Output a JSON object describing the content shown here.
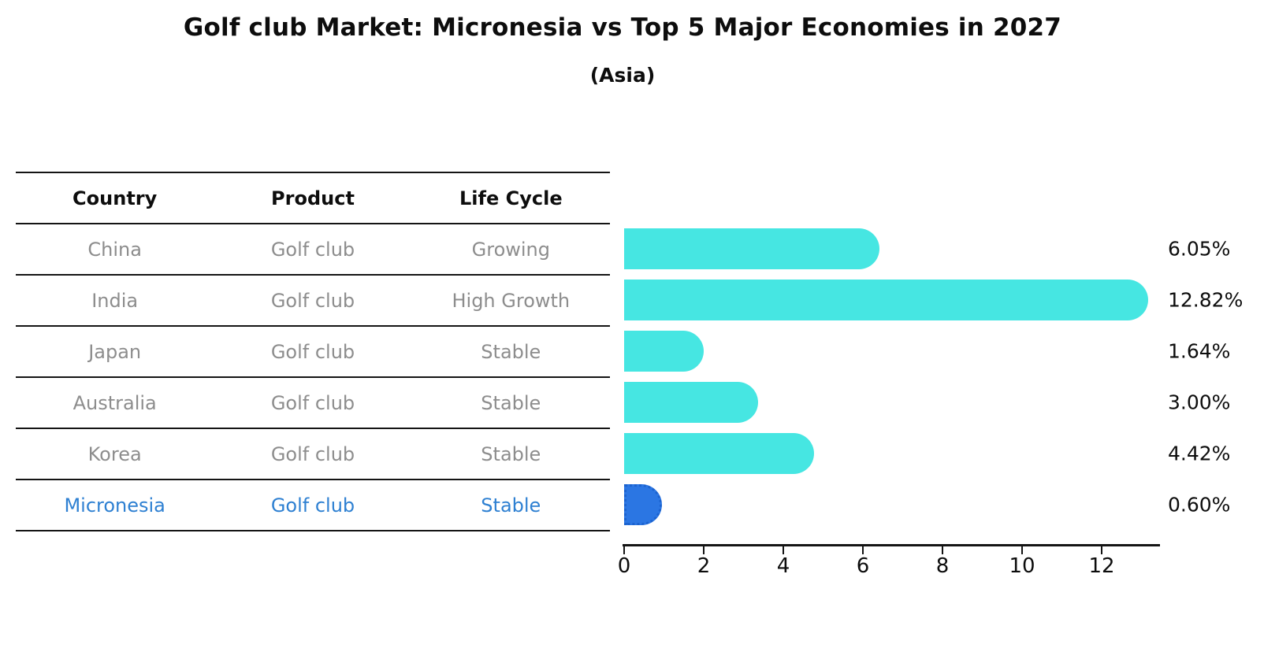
{
  "header": {
    "title": "Golf club Market: Micronesia vs Top 5 Major Economies in 2027",
    "subtitle": "(Asia)"
  },
  "table": {
    "headers": [
      "Country",
      "Product",
      "Life Cycle"
    ],
    "rows": [
      [
        "China",
        "Golf club",
        "Growing"
      ],
      [
        "India",
        "Golf club",
        "High Growth"
      ],
      [
        "Japan",
        "Golf club",
        "Stable"
      ],
      [
        "Australia",
        "Golf club",
        "Stable"
      ],
      [
        "Korea",
        "Golf club",
        "Stable"
      ],
      [
        "Micronesia",
        "Golf club",
        "Stable"
      ]
    ],
    "highlight_row": "Micronesia"
  },
  "chart_data": {
    "type": "bar",
    "orientation": "horizontal",
    "title": "Golf club Market: Micronesia vs Top 5 Major Economies in 2027",
    "subtitle": "(Asia)",
    "categories": [
      "China",
      "India",
      "Japan",
      "Australia",
      "Korea",
      "Micronesia"
    ],
    "values": [
      6.05,
      12.82,
      1.64,
      3.0,
      4.42,
      0.6
    ],
    "value_labels": [
      "6.05%",
      "12.82%",
      "1.64%",
      "3.00%",
      "4.42%",
      "0.60%"
    ],
    "xlabel": "",
    "ylabel": "",
    "xlim": [
      0,
      13.5
    ],
    "xticks": [
      0,
      2,
      4,
      6,
      8,
      10,
      12
    ],
    "grid": false,
    "legend": false,
    "bar_color": "#46E6E2",
    "highlight_color": "#2B76E3",
    "highlight_index": 5,
    "highlight_text_color": "#2e80d2",
    "row_text_color": "#8d8d8d",
    "axis_color": "#141414"
  }
}
